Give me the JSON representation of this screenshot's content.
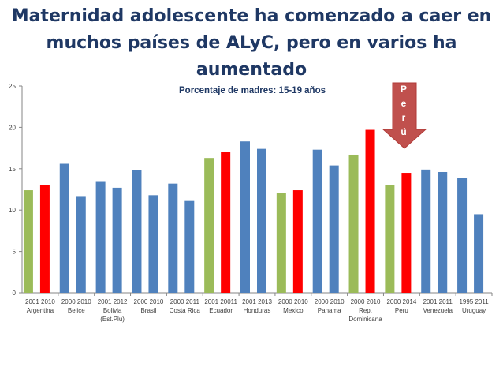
{
  "title": "Maternidad adolescente ha comenzado a caer en muchos países de ALyC, pero en varios ha aumentado",
  "colors": {
    "title": "#1f3864",
    "blue": "#4f81bd",
    "green": "#9bbb59",
    "red": "#ff0000",
    "arrow": "#c0504d"
  },
  "arrow_label": [
    "P",
    "e",
    "r",
    "ú"
  ],
  "chart_data": {
    "type": "bar",
    "subtitle": "Porcentaje de madres: 15-19 años",
    "ylim": [
      0,
      25
    ],
    "yticks": [
      0,
      5,
      10,
      15,
      20,
      25
    ],
    "grid": false,
    "groups": [
      {
        "country": [
          "Argentina"
        ],
        "years": [
          "2001",
          "2010"
        ],
        "values": [
          12.4,
          13.0
        ],
        "colors": [
          "green",
          "red"
        ]
      },
      {
        "country": [
          "Belice"
        ],
        "years": [
          "2000",
          "2010"
        ],
        "values": [
          15.6,
          11.6
        ],
        "colors": [
          "blue",
          "blue"
        ]
      },
      {
        "country": [
          "Bolivia",
          "(Est.Plu)"
        ],
        "years": [
          "2001",
          "2012"
        ],
        "values": [
          13.5,
          12.7
        ],
        "colors": [
          "blue",
          "blue"
        ]
      },
      {
        "country": [
          "Brasil"
        ],
        "years": [
          "2000",
          "2010"
        ],
        "values": [
          14.8,
          11.8
        ],
        "colors": [
          "blue",
          "blue"
        ]
      },
      {
        "country": [
          "Costa Rica"
        ],
        "years": [
          "2000",
          "2011"
        ],
        "values": [
          13.2,
          11.1
        ],
        "colors": [
          "blue",
          "blue"
        ]
      },
      {
        "country": [
          "Ecuador"
        ],
        "years": [
          "2001",
          "20011"
        ],
        "values": [
          16.3,
          17.0
        ],
        "colors": [
          "green",
          "red"
        ]
      },
      {
        "country": [
          "Honduras"
        ],
        "years": [
          "2001",
          "2013"
        ],
        "values": [
          18.3,
          17.4
        ],
        "colors": [
          "blue",
          "blue"
        ]
      },
      {
        "country": [
          "Mexico"
        ],
        "years": [
          "2000",
          "2010"
        ],
        "values": [
          12.1,
          12.4
        ],
        "colors": [
          "green",
          "red"
        ]
      },
      {
        "country": [
          "Panama"
        ],
        "years": [
          "2000",
          "2010"
        ],
        "values": [
          17.3,
          15.4
        ],
        "colors": [
          "blue",
          "blue"
        ]
      },
      {
        "country": [
          "Rep.",
          "Dominicana"
        ],
        "years": [
          "2000",
          "2010"
        ],
        "values": [
          16.7,
          19.7
        ],
        "colors": [
          "green",
          "red"
        ]
      },
      {
        "country": [
          "Peru"
        ],
        "years": [
          "2000",
          "2014"
        ],
        "values": [
          13.0,
          14.5
        ],
        "colors": [
          "green",
          "red"
        ]
      },
      {
        "country": [
          "Venezuela"
        ],
        "years": [
          "2001",
          "2011"
        ],
        "values": [
          14.9,
          14.6
        ],
        "colors": [
          "blue",
          "blue"
        ]
      },
      {
        "country": [
          "Uruguay"
        ],
        "years": [
          "1995",
          "2011"
        ],
        "values": [
          13.9,
          9.5
        ],
        "colors": [
          "blue",
          "blue"
        ]
      }
    ]
  }
}
